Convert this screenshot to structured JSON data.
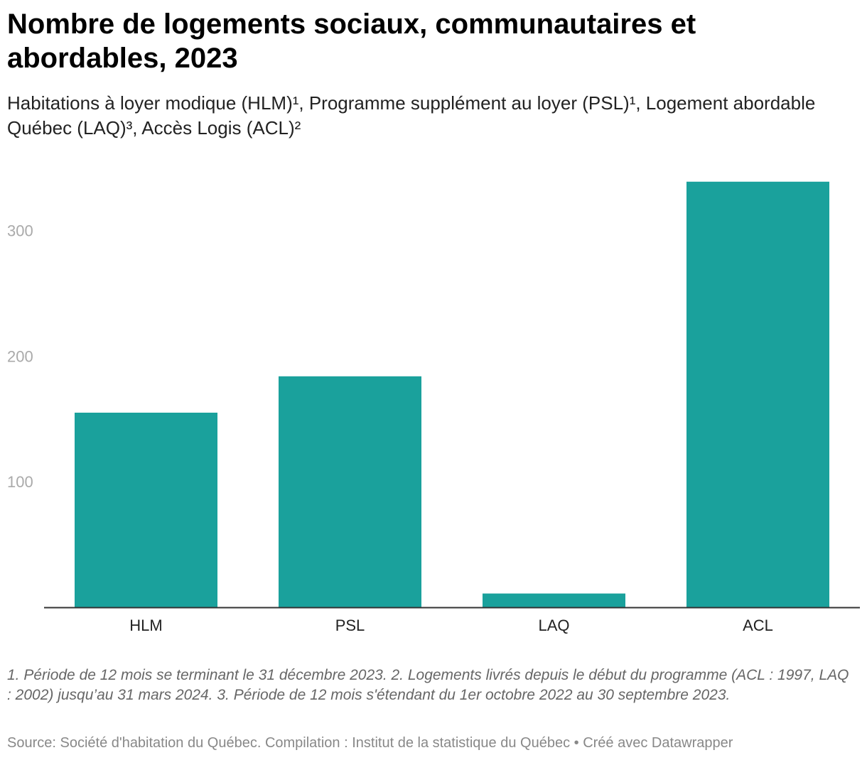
{
  "chart_data": {
    "type": "bar",
    "title": "Nombre de logements sociaux, communautaires et abordables, 2023",
    "subtitle": "Habitations à loyer modique (HLM)¹, Programme supplément au loyer (PSL)¹, Logement abordable Québec (LAQ)³, Accès Logis (ACL)²",
    "categories": [
      "HLM",
      "PSL",
      "LAQ",
      "ACL"
    ],
    "values": [
      155,
      184,
      11,
      339
    ],
    "y_ticks": [
      "100",
      "200",
      "300"
    ],
    "ylim": [
      0,
      345
    ],
    "grid": false,
    "bar_color": "#1aa19c"
  },
  "notes": "1. Période de 12 mois se terminant le 31 décembre 2023. 2. Logements livrés depuis le début du programme (ACL : 1997, LAQ : 2002) jusqu’au 31 mars 2024. 3. Période de 12 mois s'étendant du 1er octobre 2022 au 30 septembre 2023.",
  "source": "Source: Société d'habitation du Québec. Compilation : Institut de la statistique du Québec • Créé avec Datawrapper"
}
